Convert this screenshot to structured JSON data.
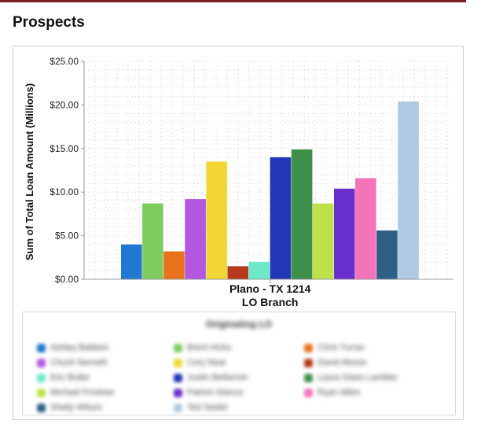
{
  "page": {
    "title": "Prospects"
  },
  "chart_data": {
    "type": "bar",
    "categories": [
      "Plano - TX 1214"
    ],
    "xlabel": "LO Branch",
    "ylabel": "Sum of Total Loan Amount (Millions)",
    "ylim": [
      0,
      25
    ],
    "yticks": [
      "$0.00",
      "$5.00",
      "$10.00",
      "$15.00",
      "$20.00",
      "$25.00"
    ],
    "grid": true,
    "legend_title": "Originating LO",
    "legend_position": "bottom",
    "series": [
      {
        "name": "Ashley Baldwin",
        "values": [
          4.0
        ],
        "color": "#1f78d1"
      },
      {
        "name": "Brent Hicks",
        "values": [
          8.7
        ],
        "color": "#7fcc5e"
      },
      {
        "name": "Chris Turner",
        "values": [
          3.2
        ],
        "color": "#e8711c"
      },
      {
        "name": "Chuck Nemeth",
        "values": [
          9.2
        ],
        "color": "#b457e0"
      },
      {
        "name": "Cory Neal",
        "values": [
          13.5
        ],
        "color": "#f2d634"
      },
      {
        "name": "David Moore",
        "values": [
          1.5
        ],
        "color": "#b5391a"
      },
      {
        "name": "Eric Butler",
        "values": [
          2.0
        ],
        "color": "#6fe8c8"
      },
      {
        "name": "Justin Bellarmin",
        "values": [
          14.0
        ],
        "color": "#2236b8"
      },
      {
        "name": "Laura Glass Lambke",
        "values": [
          14.9
        ],
        "color": "#3e8f4a"
      },
      {
        "name": "Michael Froshee",
        "values": [
          8.7
        ],
        "color": "#bde249"
      },
      {
        "name": "Patrick Glance",
        "values": [
          10.4
        ],
        "color": "#6a2fcf"
      },
      {
        "name": "Ryan Miles",
        "values": [
          11.6
        ],
        "color": "#f572b8"
      },
      {
        "name": "Shelly Wilson",
        "values": [
          5.6
        ],
        "color": "#2f5e86"
      },
      {
        "name": "Ted Seidel",
        "values": [
          20.4
        ],
        "color": "#aecbe3"
      }
    ]
  }
}
